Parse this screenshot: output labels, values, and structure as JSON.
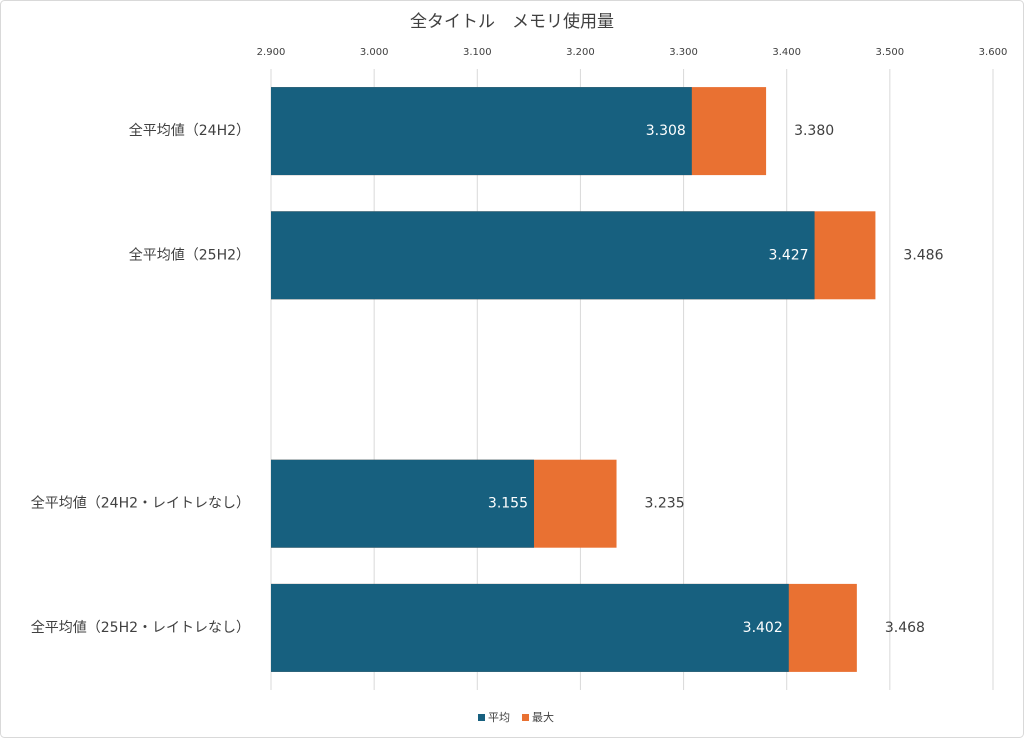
{
  "chart_data": {
    "type": "bar",
    "orientation": "horizontal",
    "overlap": true,
    "title": "全タイトル　メモリ使用量",
    "categories": [
      "全平均値（24H2）",
      "全平均値（25H2）",
      null,
      "全平均値（24H2・レイトレなし）",
      "全平均値（25H2・レイトレなし）"
    ],
    "series": [
      {
        "name": "平均",
        "color": "#17607f",
        "values": [
          3.308,
          3.427,
          null,
          3.155,
          3.402
        ],
        "value_labels": [
          "3.308",
          "3.427",
          null,
          "3.155",
          "3.402"
        ]
      },
      {
        "name": "最大",
        "color": "#e97132",
        "values": [
          3.38,
          3.486,
          null,
          3.235,
          3.468
        ],
        "value_labels": [
          "3.380",
          "3.486",
          null,
          "3.235",
          "3.468"
        ]
      }
    ],
    "xlim": [
      2.9,
      3.6
    ],
    "xticks": [
      {
        "value": 2.9,
        "label": "2.900"
      },
      {
        "value": 3.0,
        "label": "3.000"
      },
      {
        "value": 3.1,
        "label": "3.100"
      },
      {
        "value": 3.2,
        "label": "3.200"
      },
      {
        "value": 3.3,
        "label": "3.300"
      },
      {
        "value": 3.4,
        "label": "3.400"
      },
      {
        "value": 3.5,
        "label": "3.500"
      },
      {
        "value": 3.6,
        "label": "3.600"
      }
    ],
    "grid": true,
    "legend": "bottom"
  }
}
